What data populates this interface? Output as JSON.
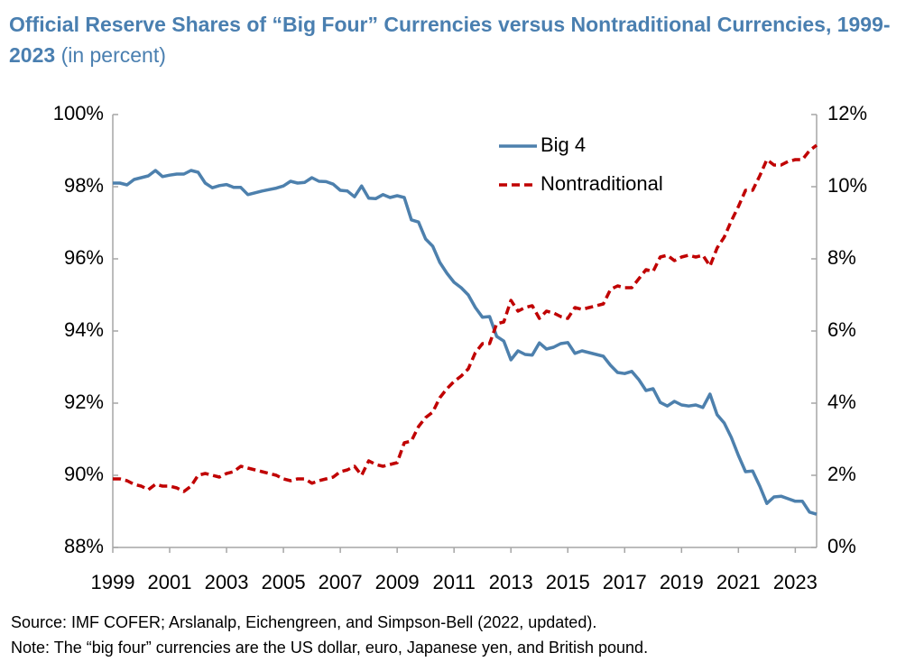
{
  "chart_data": {
    "type": "line",
    "title": "Official Reserve Shares of “Big Four” Currencies versus Nontraditional Currencies, 1999-2023",
    "subtitle": "(in percent)",
    "source": "Source: IMF COFER; Arslanalp, Eichengreen, and Simpson-Bell (2022, updated).",
    "note": "Note: The “big four” currencies are the US dollar, euro, Japanese yen, and British pound.",
    "x": [
      1999,
      1999.25,
      1999.5,
      1999.75,
      2000,
      2000.25,
      2000.5,
      2000.75,
      2001,
      2001.25,
      2001.5,
      2001.75,
      2002,
      2002.25,
      2002.5,
      2002.75,
      2003,
      2003.25,
      2003.5,
      2003.75,
      2004,
      2004.25,
      2004.5,
      2004.75,
      2005,
      2005.25,
      2005.5,
      2005.75,
      2006,
      2006.25,
      2006.5,
      2006.75,
      2007,
      2007.25,
      2007.5,
      2007.75,
      2008,
      2008.25,
      2008.5,
      2008.75,
      2009,
      2009.25,
      2009.5,
      2009.75,
      2010,
      2010.25,
      2010.5,
      2010.75,
      2011,
      2011.25,
      2011.5,
      2011.75,
      2012,
      2012.25,
      2012.5,
      2012.75,
      2013,
      2013.25,
      2013.5,
      2013.75,
      2014,
      2014.25,
      2014.5,
      2014.75,
      2015,
      2015.25,
      2015.5,
      2015.75,
      2016,
      2016.25,
      2016.5,
      2016.75,
      2017,
      2017.25,
      2017.5,
      2017.75,
      2018,
      2018.25,
      2018.5,
      2018.75,
      2019,
      2019.25,
      2019.5,
      2019.75,
      2020,
      2020.25,
      2020.5,
      2020.75,
      2021,
      2021.25,
      2021.5,
      2021.75,
      2022,
      2022.25,
      2022.5,
      2022.75,
      2023,
      2023.25,
      2023.5,
      2023.75
    ],
    "series": [
      {
        "name": "Big 4",
        "color": "#4d80ad",
        "style": "solid",
        "axis": "y",
        "values": [
          98.1,
          98.1,
          98.05,
          98.2,
          98.25,
          98.3,
          98.45,
          98.28,
          98.32,
          98.35,
          98.35,
          98.45,
          98.4,
          98.1,
          97.97,
          98.03,
          98.06,
          97.98,
          97.98,
          97.78,
          97.83,
          97.88,
          97.92,
          97.96,
          98.02,
          98.15,
          98.1,
          98.12,
          98.25,
          98.15,
          98.14,
          98.07,
          97.9,
          97.88,
          97.72,
          98.02,
          97.68,
          97.67,
          97.78,
          97.7,
          97.75,
          97.7,
          97.08,
          97.02,
          96.55,
          96.35,
          95.9,
          95.6,
          95.35,
          95.2,
          95.0,
          94.65,
          94.38,
          94.4,
          93.85,
          93.72,
          93.2,
          93.45,
          93.35,
          93.33,
          93.67,
          93.5,
          93.55,
          93.65,
          93.68,
          93.38,
          93.45,
          93.4,
          93.35,
          93.3,
          93.05,
          92.85,
          92.82,
          92.88,
          92.65,
          92.35,
          92.4,
          92.02,
          91.92,
          92.05,
          91.95,
          91.92,
          91.95,
          91.88,
          92.25,
          91.68,
          91.45,
          91.05,
          90.55,
          90.1,
          90.12,
          89.7,
          89.22,
          89.4,
          89.42,
          89.35,
          89.28,
          89.28,
          88.98,
          88.92
        ]
      },
      {
        "name": "Nontraditional",
        "color": "#c00000",
        "style": "dashed",
        "axis": "y2",
        "values": [
          1.9,
          1.9,
          1.85,
          1.75,
          1.7,
          1.6,
          1.75,
          1.7,
          1.7,
          1.65,
          1.55,
          1.7,
          2.0,
          2.05,
          2.0,
          1.95,
          2.05,
          2.1,
          2.25,
          2.2,
          2.15,
          2.1,
          2.05,
          2.0,
          1.9,
          1.85,
          1.9,
          1.9,
          1.78,
          1.85,
          1.9,
          1.95,
          2.1,
          2.15,
          2.25,
          2.0,
          2.4,
          2.3,
          2.25,
          2.3,
          2.35,
          2.9,
          2.95,
          3.35,
          3.6,
          3.75,
          4.15,
          4.4,
          4.6,
          4.75,
          4.95,
          5.4,
          5.65,
          5.65,
          6.2,
          6.25,
          6.85,
          6.55,
          6.65,
          6.7,
          6.35,
          6.55,
          6.5,
          6.4,
          6.35,
          6.65,
          6.6,
          6.65,
          6.7,
          6.75,
          7.15,
          7.25,
          7.2,
          7.2,
          7.45,
          7.7,
          7.65,
          8.05,
          8.1,
          7.95,
          8.05,
          8.1,
          8.05,
          8.1,
          7.8,
          8.3,
          8.6,
          9.05,
          9.45,
          9.9,
          9.9,
          10.3,
          10.75,
          10.6,
          10.6,
          10.7,
          10.75,
          10.75,
          11.0,
          11.15
        ]
      }
    ],
    "xlim": [
      1999,
      2023.75
    ],
    "xticks": [
      1999,
      2001,
      2003,
      2005,
      2007,
      2009,
      2011,
      2013,
      2015,
      2017,
      2019,
      2021,
      2023
    ],
    "ylim": [
      88,
      100
    ],
    "yticks": [
      {
        "value": 88,
        "label": "88%"
      },
      {
        "value": 90,
        "label": "90%"
      },
      {
        "value": 92,
        "label": "92%"
      },
      {
        "value": 94,
        "label": "94%"
      },
      {
        "value": 96,
        "label": "96%"
      },
      {
        "value": 98,
        "label": "98%"
      },
      {
        "value": 100,
        "label": "100%"
      }
    ],
    "y2lim": [
      0,
      12
    ],
    "y2ticks": [
      {
        "value": 0,
        "label": "0%"
      },
      {
        "value": 2,
        "label": "2%"
      },
      {
        "value": 4,
        "label": "4%"
      },
      {
        "value": 6,
        "label": "6%"
      },
      {
        "value": 8,
        "label": "8%"
      },
      {
        "value": 10,
        "label": "10%"
      },
      {
        "value": 12,
        "label": "12%"
      }
    ],
    "grid": false,
    "legend": "upper center"
  }
}
